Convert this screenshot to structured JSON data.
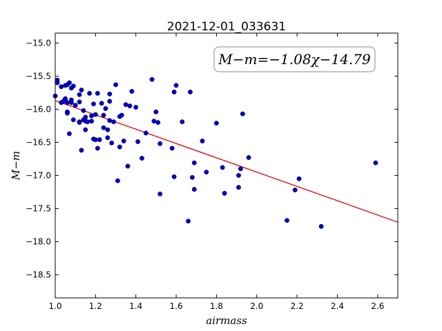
{
  "chart_data": {
    "type": "scatter",
    "title": "2021-12-01_033631",
    "xlabel": "airmass",
    "ylabel": "M−m",
    "xlim": [
      1.0,
      2.7
    ],
    "ylim": [
      -18.85,
      -14.85
    ],
    "y_inverted": true,
    "x_ticks": [
      1.0,
      1.2,
      1.4,
      1.6,
      1.8,
      2.0,
      2.2,
      2.4,
      2.6
    ],
    "x_tick_labels": [
      "1.0",
      "1.2",
      "1.4",
      "1.6",
      "1.8",
      "2.0",
      "2.2",
      "2.4",
      "2.6"
    ],
    "y_ticks": [
      -15.0,
      -15.5,
      -16.0,
      -16.5,
      -17.0,
      -17.5,
      -18.0,
      -18.5
    ],
    "y_tick_labels": [
      "−15.0",
      "−15.5",
      "−16.0",
      "−16.5",
      "−17.0",
      "−17.5",
      "−18.0",
      "−18.5"
    ],
    "grid": false,
    "annotation": "M−m=−1.08χ−14.79",
    "annotation_position": "top-right",
    "colors": {
      "points": "#0000cc",
      "fit_line": "#dd0000"
    },
    "fit": {
      "slope": -1.08,
      "intercept": -14.79
    },
    "points": [
      [
        1.0,
        -15.8
      ],
      [
        1.01,
        -15.56
      ],
      [
        1.01,
        -15.6
      ],
      [
        1.03,
        -15.66
      ],
      [
        1.03,
        -15.9
      ],
      [
        1.04,
        -15.88
      ],
      [
        1.05,
        -15.64
      ],
      [
        1.05,
        -15.84
      ],
      [
        1.06,
        -15.63
      ],
      [
        1.06,
        -15.9
      ],
      [
        1.06,
        -16.04
      ],
      [
        1.06,
        -16.06
      ],
      [
        1.07,
        -15.6
      ],
      [
        1.07,
        -16.37
      ],
      [
        1.08,
        -15.68
      ],
      [
        1.08,
        -15.86
      ],
      [
        1.08,
        -15.9
      ],
      [
        1.09,
        -15.65
      ],
      [
        1.09,
        -16.16
      ],
      [
        1.1,
        -15.94
      ],
      [
        1.12,
        -15.89
      ],
      [
        1.12,
        -16.19
      ],
      [
        1.12,
        -16.2
      ],
      [
        1.12,
        -15.78
      ],
      [
        1.13,
        -15.71
      ],
      [
        1.13,
        -16.62
      ],
      [
        1.14,
        -16.02
      ],
      [
        1.14,
        -16.16
      ],
      [
        1.15,
        -16.31
      ],
      [
        1.15,
        -16.12
      ],
      [
        1.15,
        -16.18
      ],
      [
        1.16,
        -16.19
      ],
      [
        1.17,
        -15.76
      ],
      [
        1.18,
        -16.1
      ],
      [
        1.18,
        -16.18
      ],
      [
        1.19,
        -16.45
      ],
      [
        1.19,
        -15.92
      ],
      [
        1.2,
        -16.08
      ],
      [
        1.2,
        -16.46
      ],
      [
        1.21,
        -15.76
      ],
      [
        1.21,
        -16.59
      ],
      [
        1.22,
        -16.46
      ],
      [
        1.23,
        -15.91
      ],
      [
        1.24,
        -16.09
      ],
      [
        1.24,
        -16.28
      ],
      [
        1.25,
        -15.99
      ],
      [
        1.26,
        -16.31
      ],
      [
        1.26,
        -16.43
      ],
      [
        1.27,
        -15.77
      ],
      [
        1.27,
        -15.88
      ],
      [
        1.27,
        -16.17
      ],
      [
        1.28,
        -16.51
      ],
      [
        1.29,
        -16.19
      ],
      [
        1.3,
        -15.63
      ],
      [
        1.31,
        -17.08
      ],
      [
        1.32,
        -16.57
      ],
      [
        1.32,
        -16.11
      ],
      [
        1.33,
        -16.09
      ],
      [
        1.34,
        -16.48
      ],
      [
        1.35,
        -15.93
      ],
      [
        1.36,
        -16.86
      ],
      [
        1.37,
        -15.95
      ],
      [
        1.38,
        -15.73
      ],
      [
        1.4,
        -15.97
      ],
      [
        1.41,
        -16.49
      ],
      [
        1.43,
        -16.74
      ],
      [
        1.45,
        -16.36
      ],
      [
        1.48,
        -15.55
      ],
      [
        1.49,
        -16.18
      ],
      [
        1.5,
        -16.04
      ],
      [
        1.51,
        -16.2
      ],
      [
        1.52,
        -16.52
      ],
      [
        1.52,
        -17.28
      ],
      [
        1.58,
        -16.59
      ],
      [
        1.59,
        -17.02
      ],
      [
        1.59,
        -15.74
      ],
      [
        1.6,
        -15.64
      ],
      [
        1.63,
        -16.19
      ],
      [
        1.66,
        -17.69
      ],
      [
        1.67,
        -15.74
      ],
      [
        1.68,
        -17.03
      ],
      [
        1.69,
        -16.81
      ],
      [
        1.69,
        -17.21
      ],
      [
        1.73,
        -16.48
      ],
      [
        1.75,
        -16.95
      ],
      [
        1.8,
        -16.21
      ],
      [
        1.83,
        -16.88
      ],
      [
        1.84,
        -17.27
      ],
      [
        1.91,
        -17.0
      ],
      [
        1.91,
        -17.18
      ],
      [
        1.92,
        -16.9
      ],
      [
        1.93,
        -16.07
      ],
      [
        1.96,
        -16.73
      ],
      [
        2.15,
        -17.68
      ],
      [
        2.19,
        -17.22
      ],
      [
        2.21,
        -17.05
      ],
      [
        2.32,
        -17.77
      ],
      [
        2.59,
        -16.81
      ]
    ]
  }
}
